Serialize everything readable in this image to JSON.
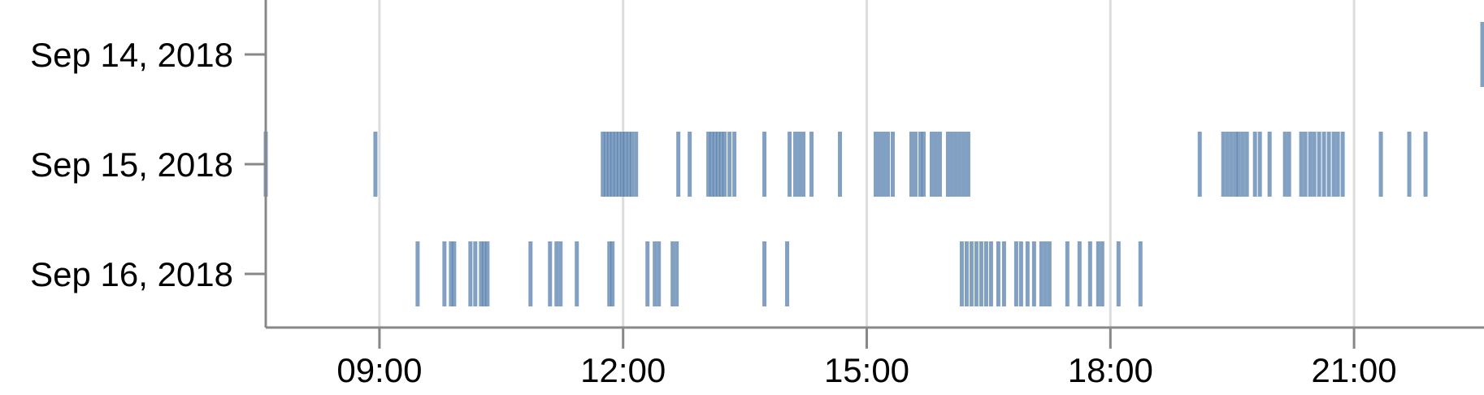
{
  "chart_data": {
    "type": "strip",
    "title": "",
    "xlabel": "",
    "ylabel": "",
    "x_unit": "hours",
    "xlim": [
      7.6,
      22.6
    ],
    "x_ticks": [
      9,
      12,
      15,
      18,
      21
    ],
    "x_tick_labels": [
      "09:00",
      "12:00",
      "15:00",
      "18:00",
      "21:00"
    ],
    "grid": "vertical",
    "categories": [
      "Sep 14, 2018",
      "Sep 15, 2018",
      "Sep 16, 2018"
    ],
    "color": "#4c78a8",
    "series": [
      {
        "category": "Sep 14, 2018",
        "times": [
          22.58
        ]
      },
      {
        "category": "Sep 15, 2018",
        "times": [
          7.6,
          8.95,
          11.75,
          11.79,
          11.83,
          11.87,
          11.91,
          11.95,
          11.99,
          12.03,
          12.07,
          12.11,
          12.16,
          12.68,
          12.82,
          13.05,
          13.09,
          13.13,
          13.17,
          13.21,
          13.25,
          13.31,
          13.37,
          13.74,
          14.05,
          14.12,
          14.17,
          14.22,
          14.32,
          14.67,
          15.11,
          15.16,
          15.21,
          15.26,
          15.32,
          15.55,
          15.6,
          15.66,
          15.7,
          15.8,
          15.85,
          15.9,
          16.0,
          16.05,
          16.1,
          16.15,
          16.2,
          16.25,
          19.1,
          19.39,
          19.44,
          19.49,
          19.54,
          19.58,
          19.63,
          19.68,
          19.78,
          19.84,
          19.96,
          20.15,
          20.2,
          20.35,
          20.4,
          20.46,
          20.51,
          20.57,
          20.63,
          20.69,
          20.75,
          20.8,
          20.86,
          21.33,
          21.68,
          21.88
        ]
      },
      {
        "category": "Sep 16, 2018",
        "times": [
          9.47,
          9.8,
          9.88,
          9.92,
          10.12,
          10.18,
          10.25,
          10.29,
          10.33,
          10.86,
          11.1,
          11.18,
          11.23,
          11.43,
          11.83,
          11.87,
          12.3,
          12.39,
          12.44,
          12.61,
          12.66,
          13.74,
          14.02,
          16.17,
          16.23,
          16.29,
          16.35,
          16.41,
          16.47,
          16.53,
          16.62,
          16.69,
          16.84,
          16.9,
          16.98,
          17.06,
          17.15,
          17.2,
          17.25,
          17.47,
          17.62,
          17.75,
          17.85,
          17.9,
          18.1,
          18.37
        ]
      }
    ]
  }
}
